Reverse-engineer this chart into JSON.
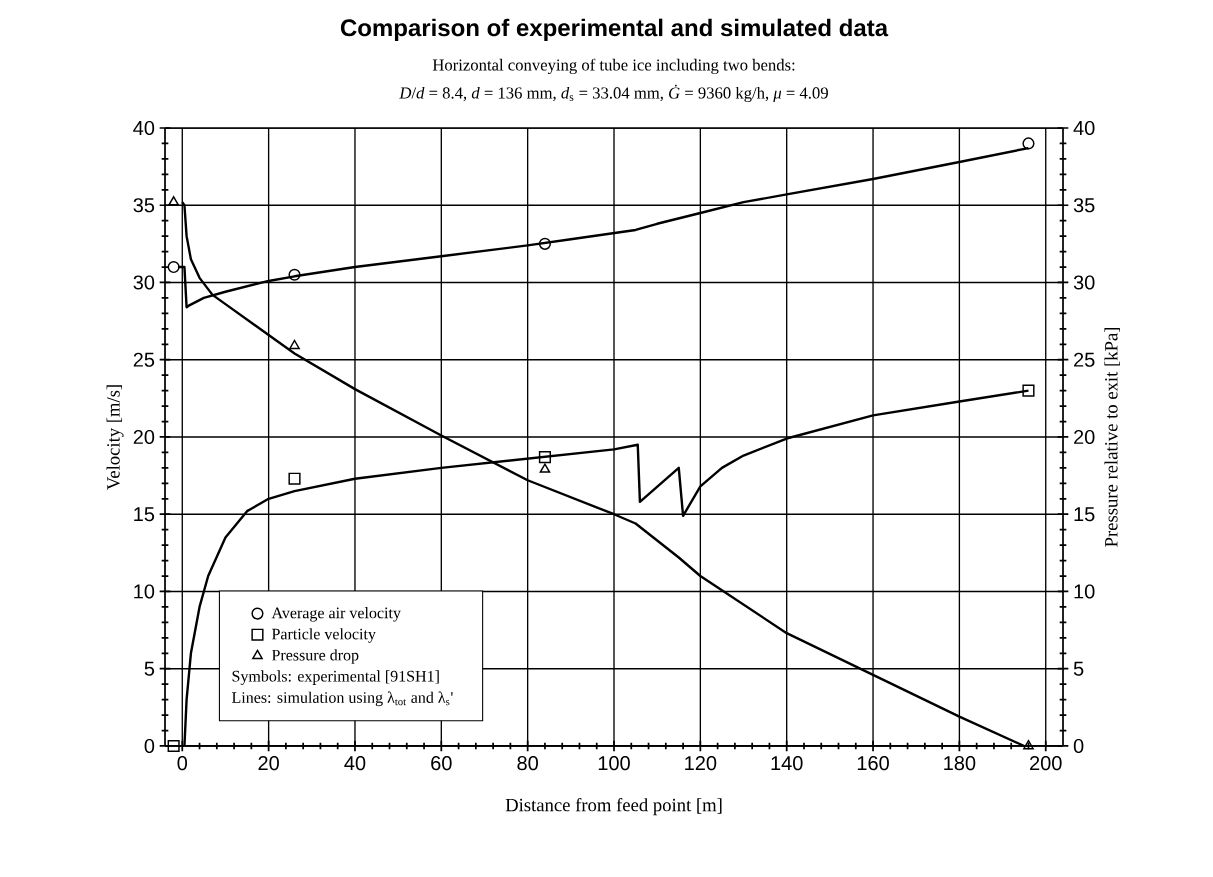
{
  "chart_data": {
    "type": "line",
    "title": "Comparison of experimental and simulated data",
    "subtitle": "Horizontal conveying of tube ice including two bends:",
    "annotations": [
      "*D*/*d* = 8.4, *d* = 136 mm, *d*$_{s}$ = 33.04 mm, *Ġ* = 9360 kg/h, *μ* = 4.09",
      "Symbols: experimental [91SH1]",
      "Lines: simulation using λ$_{tot}$ and λ$_{s}$'"
    ],
    "xlabel": "Distance from feed point [m]",
    "ylabel": "Velocity [m/s]",
    "y2label": "Pressure relative to exit [kPa]",
    "xlim": [
      -4,
      204
    ],
    "xticks": [
      0,
      20,
      40,
      60,
      80,
      100,
      120,
      140,
      160,
      180,
      200
    ],
    "ylim": [
      0,
      40
    ],
    "yticks": [
      0,
      5,
      10,
      15,
      20,
      25,
      30,
      35,
      40
    ],
    "y2lim": [
      0,
      40
    ],
    "y2ticks": [
      0,
      5,
      10,
      15,
      20,
      25,
      30,
      35,
      40
    ],
    "grid": true,
    "legend": "bottom left",
    "series": [
      {
        "name": "Average air velocity",
        "type": "scatter",
        "marker": "circle",
        "color": "#000000",
        "x": [
          -2,
          26,
          84,
          196
        ],
        "values": [
          31,
          30.5,
          32.5,
          39
        ]
      },
      {
        "name": "Particle velocity",
        "type": "scatter",
        "marker": "square",
        "color": "#000000",
        "x": [
          -2,
          26,
          84,
          196
        ],
        "values": [
          0,
          17.3,
          18.7,
          23
        ]
      },
      {
        "name": "Pressure drop",
        "type": "scatter",
        "marker": "triangle",
        "axis": "y2",
        "color": "#000000",
        "x": [
          -2,
          26,
          84,
          196
        ],
        "values": [
          35.2,
          25.9,
          17.9,
          0
        ]
      },
      {
        "type": "line",
        "marker": "none",
        "color": "#000000",
        "x": [
          -1,
          0.5,
          1,
          1.5,
          5,
          10,
          20,
          26,
          40,
          60,
          80,
          90,
          100,
          105,
          110,
          120,
          130,
          140,
          160,
          180,
          196
        ],
        "values": [
          31,
          31,
          28.4,
          28.5,
          29,
          29.4,
          30.1,
          30.4,
          31,
          31.7,
          32.4,
          32.8,
          33.2,
          33.4,
          33.8,
          34.5,
          35.2,
          35.7,
          36.7,
          37.8,
          38.7
        ]
      },
      {
        "type": "line",
        "marker": "none",
        "color": "#000000",
        "x": [
          0.5,
          1,
          2,
          4,
          6,
          10,
          15,
          20,
          26,
          40,
          60,
          80,
          100,
          105.5,
          106,
          115,
          116,
          120,
          125,
          130,
          140,
          160,
          180,
          196
        ],
        "values": [
          0,
          3,
          6,
          9,
          11,
          13.5,
          15.2,
          16,
          16.5,
          17.3,
          18,
          18.6,
          19.2,
          19.5,
          15.8,
          18,
          14.9,
          16.8,
          18,
          18.8,
          19.9,
          21.4,
          22.3,
          23
        ]
      },
      {
        "type": "line",
        "marker": "none",
        "axis": "y2",
        "color": "#000000",
        "x": [
          0,
          0.5,
          1,
          2,
          4,
          7,
          10,
          15,
          20,
          26,
          40,
          60,
          80,
          100,
          105,
          110,
          115,
          120,
          140,
          160,
          180,
          195
        ],
        "values": [
          35.2,
          35,
          33,
          31.5,
          30.3,
          29.2,
          28.6,
          27.6,
          26.6,
          25.4,
          23.1,
          20.1,
          17.2,
          15,
          14.4,
          13.3,
          12.2,
          11,
          7.3,
          4.6,
          1.9,
          0
        ]
      }
    ]
  }
}
